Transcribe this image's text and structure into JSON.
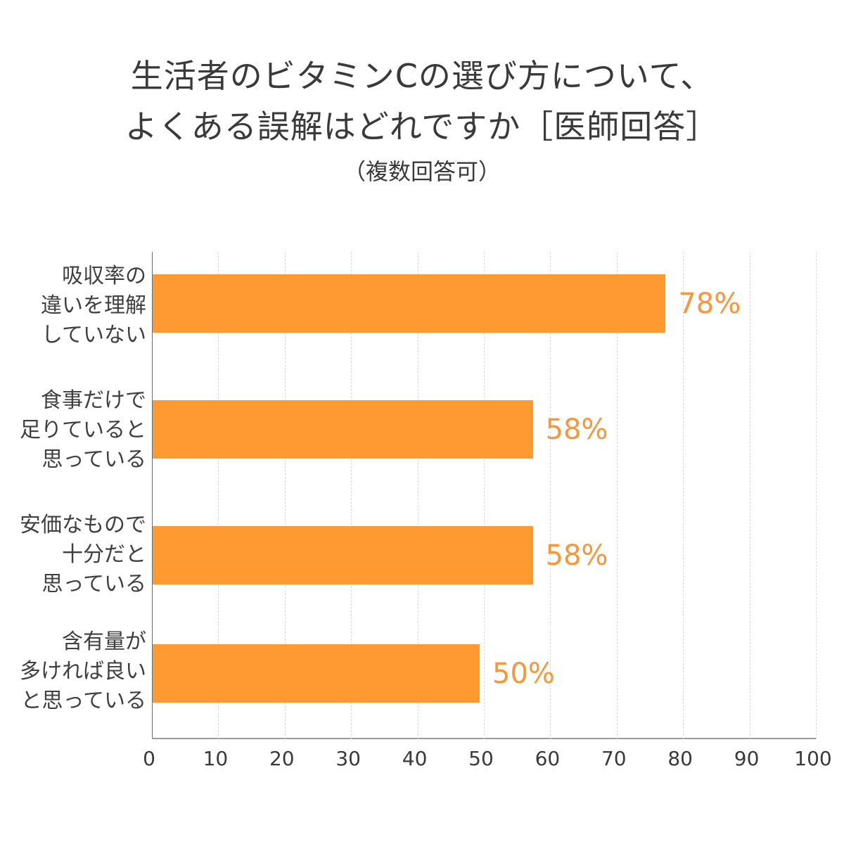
{
  "title": {
    "line1": "生活者のビタミンCの選び方について、",
    "line2": "よくある誤解はどれですか［医師回答］",
    "line3": "（複数回答可）"
  },
  "colors": {
    "bar": "#ff9a33",
    "label": "#f7963a",
    "text": "#3a3a3a"
  },
  "chart_data": {
    "type": "bar",
    "orientation": "horizontal",
    "title": "生活者のビタミンCの選び方について、よくある誤解はどれですか［医師回答］（複数回答可）",
    "categories": [
      "吸収率の違いを理解していない",
      "食事だけで足りていると思っている",
      "安価なもので十分だと思っている",
      "含有量が多ければ良いと思っている"
    ],
    "category_lines": [
      [
        "吸収率の",
        "違いを理解",
        "していない"
      ],
      [
        "食事だけで",
        "足りていると",
        "思っている"
      ],
      [
        "安価なもので",
        "十分だと",
        "思っている"
      ],
      [
        "含有量が",
        "多ければ良い",
        "と思っている"
      ]
    ],
    "values": [
      78,
      58,
      58,
      50
    ],
    "value_labels": [
      "78%",
      "58%",
      "58%",
      "50%"
    ],
    "xlabel": "",
    "ylabel": "",
    "xlim": [
      0,
      100
    ],
    "xticks": [
      "0",
      "10",
      "20",
      "30",
      "40",
      "50",
      "60",
      "70",
      "80",
      "90",
      "100"
    ],
    "grid": "vertical dashed",
    "legend": "none"
  }
}
